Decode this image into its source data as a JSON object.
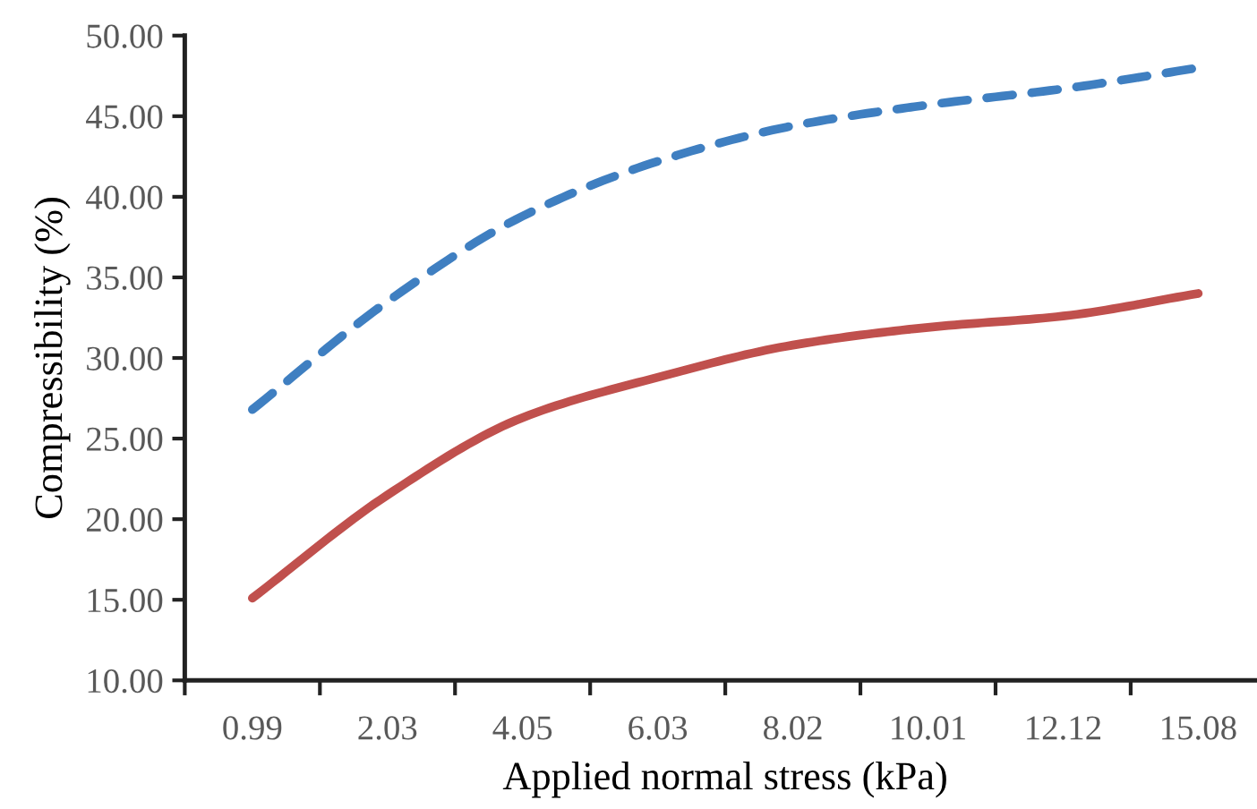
{
  "chart_data": {
    "type": "line",
    "xlabel": "Applied normal stress (kPa)",
    "ylabel": "Compressibility (%)",
    "categories": [
      "0.99",
      "2.03",
      "4.05",
      "6.03",
      "8.02",
      "10.01",
      "12.12",
      "15.08"
    ],
    "series": [
      {
        "color": "#3f7fc1",
        "line_style": "dashed",
        "values": [
          26.8,
          33.5,
          38.8,
          42.2,
          44.4,
          45.7,
          46.7,
          48.0
        ]
      },
      {
        "color": "#c0504d",
        "line_style": "solid",
        "values": [
          15.1,
          21.5,
          26.3,
          28.8,
          30.8,
          31.9,
          32.6,
          34.0
        ]
      }
    ],
    "ylim": [
      10,
      50
    ],
    "yticks": [
      {
        "value": 10,
        "label": "10.00"
      },
      {
        "value": 15,
        "label": "15.00"
      },
      {
        "value": 20,
        "label": "20.00"
      },
      {
        "value": 25,
        "label": "25.00"
      },
      {
        "value": 30,
        "label": "30.00"
      },
      {
        "value": 35,
        "label": "35.00"
      },
      {
        "value": 40,
        "label": "40.00"
      },
      {
        "value": 45,
        "label": "45.00"
      },
      {
        "value": 50,
        "label": "50.00"
      }
    ],
    "grid": false,
    "legend": false,
    "marker": "none"
  }
}
